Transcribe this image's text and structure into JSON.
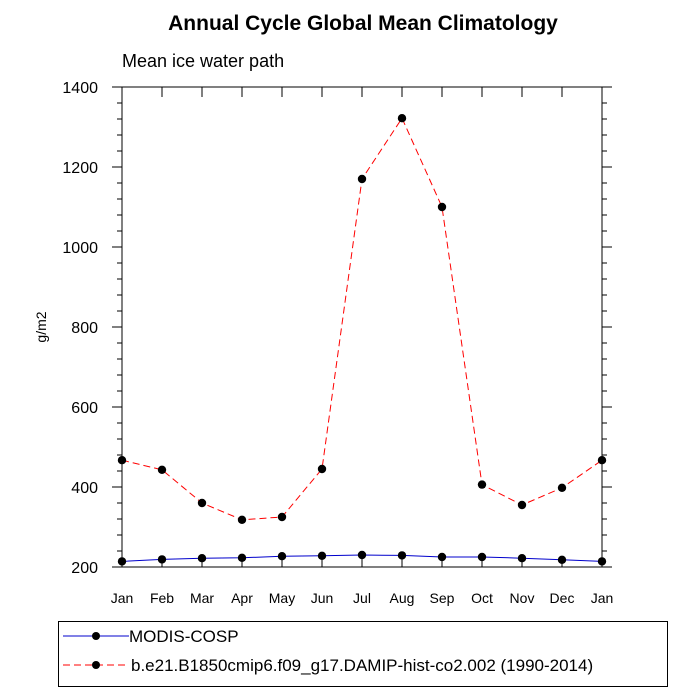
{
  "chart_data": {
    "type": "line",
    "title": "Annual Cycle Global Mean Climatology",
    "subtitle": "Mean ice water path",
    "ylabel": "g/m2",
    "xlabel": "",
    "ylim": [
      200,
      1400
    ],
    "yticks": [
      200,
      400,
      600,
      800,
      1000,
      1200,
      1400
    ],
    "categories": [
      "Jan",
      "Feb",
      "Mar",
      "Apr",
      "May",
      "Jun",
      "Jul",
      "Aug",
      "Sep",
      "Oct",
      "Nov",
      "Dec",
      "Jan"
    ],
    "grid": false,
    "legend_position": "bottom",
    "series": [
      {
        "name": "MODIS-COSP",
        "color": "#0000cc",
        "line_style": "solid",
        "marker": "filled-circle",
        "values": [
          214,
          219,
          222,
          223,
          227,
          228,
          230,
          229,
          225,
          225,
          222,
          218,
          214
        ]
      },
      {
        "name": "b.e21.B1850cmip6.f09_g17.DAMIP-hist-co2.002 (1990-2014)",
        "color": "#ff0000",
        "line_style": "dashed",
        "marker": "filled-circle",
        "values": [
          467,
          443,
          360,
          318,
          325,
          445,
          1170,
          1322,
          1100,
          406,
          355,
          398,
          467
        ]
      }
    ]
  }
}
